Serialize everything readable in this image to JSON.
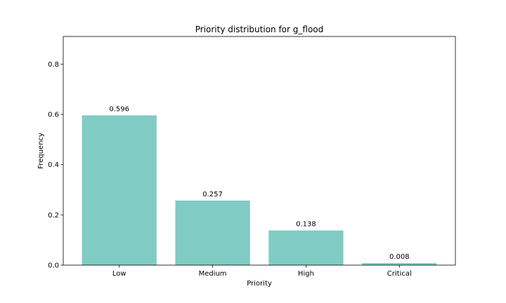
{
  "chart_data": {
    "type": "bar",
    "title": "Priority distribution for g_flood",
    "xlabel": "Priority",
    "ylabel": "Frequency",
    "categories": [
      "Low",
      "Medium",
      "High",
      "Critical"
    ],
    "values": [
      0.596,
      0.257,
      0.138,
      0.008
    ],
    "value_labels": [
      "0.596",
      "0.257",
      "0.138",
      "0.008"
    ],
    "ylim": [
      0,
      0.91
    ],
    "yticks": [
      0.0,
      0.2,
      0.4,
      0.6,
      0.8
    ],
    "ytick_labels": [
      "0.0",
      "0.2",
      "0.4",
      "0.6",
      "0.8"
    ],
    "grid": false,
    "bar_color": "#80cbc4"
  }
}
